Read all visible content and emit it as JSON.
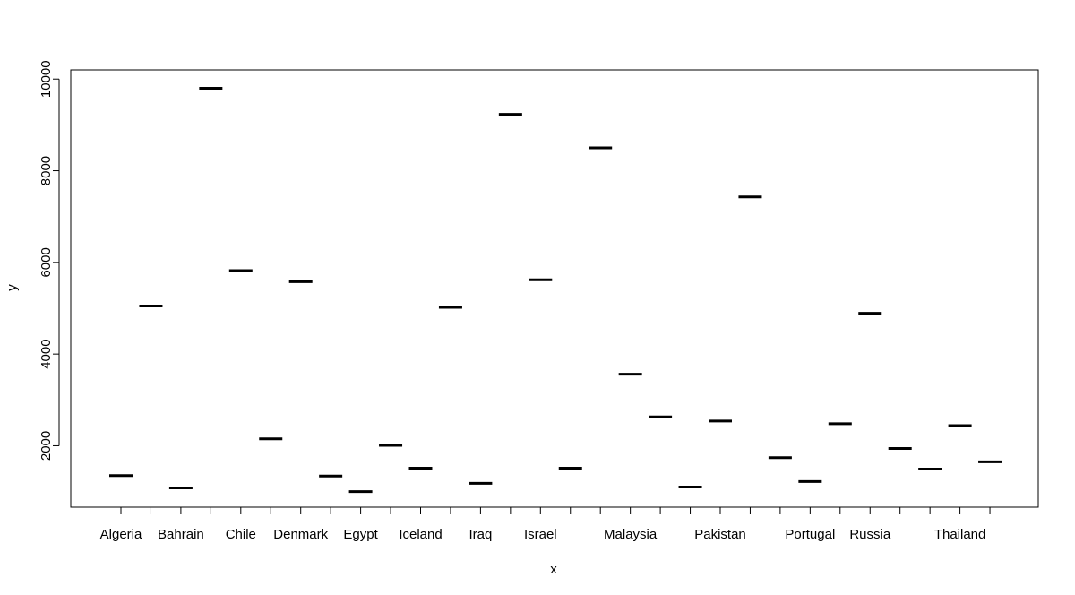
{
  "chart_data": {
    "type": "bar",
    "plot_style": "boxplot-medians",
    "xlabel": "x",
    "ylabel": "y",
    "ylim": [
      660,
      10200
    ],
    "yticks": [
      2000,
      4000,
      6000,
      8000,
      10000
    ],
    "ytick_labels": [
      "2000",
      "4000",
      "6000",
      "8000",
      "10000"
    ],
    "categories": [
      "Algeria",
      "",
      "Bahrain",
      "",
      "Chile",
      "",
      "Denmark",
      "",
      "Egypt",
      "",
      "Iceland",
      "",
      "Iraq",
      "",
      "Israel",
      "",
      "",
      "Malaysia",
      "",
      "",
      "Pakistan",
      "",
      "",
      "Portugal",
      "",
      "Russia",
      "",
      "",
      "Thailand",
      ""
    ],
    "values": [
      1350,
      5050,
      1080,
      9800,
      5820,
      2150,
      5580,
      1340,
      1000,
      2010,
      1510,
      5020,
      1180,
      9230,
      5620,
      1510,
      8500,
      3560,
      2630,
      1100,
      2540,
      7430,
      1740,
      1220,
      2480,
      4890,
      1940,
      1490,
      2440,
      1650
    ],
    "grid": false,
    "legend": "none",
    "colors": {
      "median": "#000000",
      "frame": "#000000",
      "background": "#ffffff"
    }
  }
}
